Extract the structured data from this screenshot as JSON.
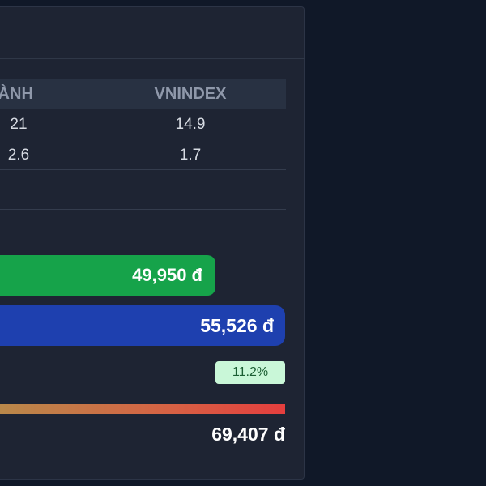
{
  "valuation_table": {
    "columns": [
      "GÀNH",
      "VNINDEX"
    ],
    "rows": [
      {
        "industry": "21",
        "vnindex": "14.9"
      },
      {
        "industry": "2.6",
        "vnindex": "1.7"
      }
    ]
  },
  "price_bars": {
    "current_price": "49,950 đ",
    "target_price": "55,526 đ",
    "upside_percent": "11.2%",
    "high_price": "69,407 đ"
  },
  "colors": {
    "background": "#101828",
    "card": "#1e2433",
    "current_bar": "#16a34a",
    "target_bar": "#1e40af",
    "upside_badge": "#c9f7d8",
    "range_end": "#e53e3e"
  }
}
